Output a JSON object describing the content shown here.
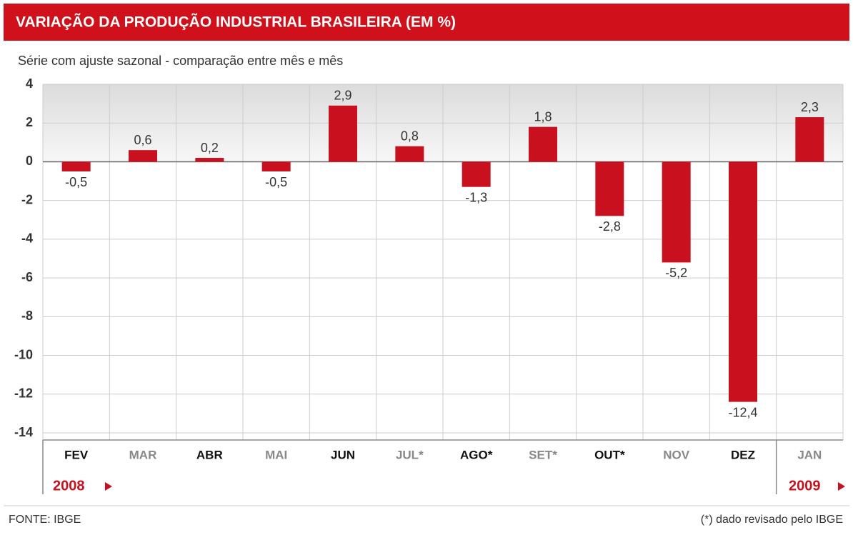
{
  "chart_data": {
    "type": "bar",
    "title": "VARIAÇÃO DA PRODUÇÃO INDUSTRIAL BRASILEIRA (EM %)",
    "subtitle": "Série com ajuste sazonal - comparação entre mês e mês",
    "categories": [
      "FEV",
      "MAR",
      "ABR",
      "MAI",
      "JUN",
      "JUL*",
      "AGO*",
      "SET*",
      "OUT*",
      "NOV",
      "DEZ",
      "JAN"
    ],
    "values": [
      -0.5,
      0.6,
      0.2,
      -0.5,
      2.9,
      0.8,
      -1.3,
      1.8,
      -2.8,
      -5.2,
      -12.4,
      2.3
    ],
    "value_labels": [
      "-0,5",
      "0,6",
      "0,2",
      "-0,5",
      "2,9",
      "0,8",
      "-1,3",
      "1,8",
      "-2,8",
      "-5,2",
      "-12,4",
      "2,3"
    ],
    "color": "#c8101e",
    "ylim": [
      -14,
      4
    ],
    "yticks": [
      4,
      2,
      0,
      -2,
      -4,
      -6,
      -8,
      -10,
      -12,
      -14
    ],
    "grid": true,
    "years": [
      "2008",
      "2009"
    ],
    "source": "FONTE: IBGE",
    "note": "(*) dado revisado pelo IBGE"
  }
}
